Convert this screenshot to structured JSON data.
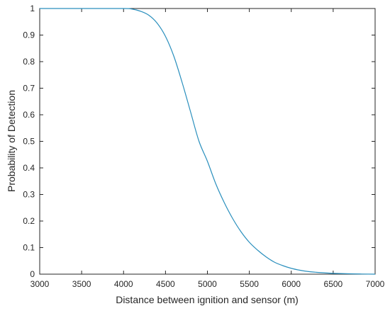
{
  "chart_data": {
    "type": "line",
    "title": "",
    "xlabel": "Distance between ignition and sensor (m)",
    "ylabel": "Probability of Detection",
    "xlim": [
      3000,
      7000
    ],
    "ylim": [
      0,
      1
    ],
    "xticks": [
      3000,
      3500,
      4000,
      4500,
      5000,
      5500,
      6000,
      6500,
      7000
    ],
    "yticks": [
      0,
      0.1,
      0.2,
      0.3,
      0.4,
      0.5,
      0.6,
      0.7,
      0.8,
      0.9,
      1
    ],
    "xtick_labels": [
      "3000",
      "3500",
      "4000",
      "4500",
      "5000",
      "5500",
      "6000",
      "6500",
      "7000"
    ],
    "ytick_labels": [
      "0",
      "0.1",
      "0.2",
      "0.3",
      "0.4",
      "0.5",
      "0.6",
      "0.7",
      "0.8",
      "0.9",
      "1"
    ],
    "grid": false,
    "series": [
      {
        "color": "#2a8fbd",
        "x": [
          3000,
          3500,
          4000,
          4100,
          4200,
          4300,
          4400,
          4500,
          4600,
          4700,
          4800,
          4900,
          5000,
          5100,
          5200,
          5300,
          5400,
          5500,
          5600,
          5700,
          5800,
          5900,
          6000,
          6100,
          6200,
          6300,
          6400,
          6500,
          6750,
          7000
        ],
        "y": [
          1,
          1,
          1,
          0.998,
          0.99,
          0.975,
          0.945,
          0.895,
          0.82,
          0.72,
          0.61,
          0.5,
          0.425,
          0.34,
          0.27,
          0.21,
          0.16,
          0.12,
          0.09,
          0.065,
          0.045,
          0.032,
          0.022,
          0.015,
          0.01,
          0.007,
          0.005,
          0.003,
          0.001,
          0.0
        ]
      }
    ]
  }
}
